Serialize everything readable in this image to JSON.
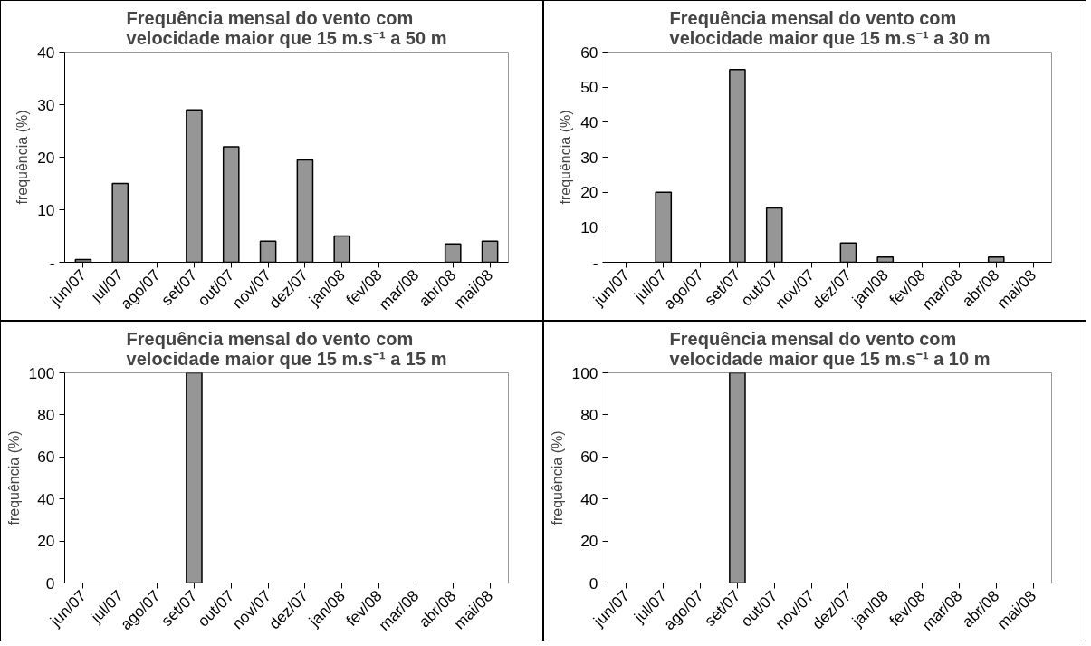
{
  "chart_data": [
    {
      "type": "bar",
      "title": "Frequência mensal do vento com\nvelocidade maior que 15 m.s⁻¹ a 50 m",
      "ylabel": "frequência (%)",
      "categories": [
        "jun/07",
        "jul/07",
        "ago/07",
        "set/07",
        "out/07",
        "nov/07",
        "dez/07",
        "jan/08",
        "fev/08",
        "mar/08",
        "abr/08",
        "mai/08"
      ],
      "values": [
        0.5,
        15,
        0,
        29,
        22,
        4,
        19.5,
        5,
        0,
        0,
        3.5,
        4
      ],
      "color": "#969696",
      "ylim": [
        0,
        40
      ],
      "yticks": [
        {
          "value": 0,
          "label": "-"
        },
        10,
        20,
        30,
        40
      ],
      "grid": false
    },
    {
      "type": "bar",
      "title": "Frequência mensal do vento com\nvelocidade maior que 15 m.s⁻¹ a 30 m",
      "ylabel": "frequência (%)",
      "categories": [
        "jun/07",
        "jul/07",
        "ago/07",
        "set/07",
        "out/07",
        "nov/07",
        "dez/07",
        "jan/08",
        "fev/08",
        "mar/08",
        "abr/08",
        "mai/08"
      ],
      "values": [
        0,
        20,
        0,
        55,
        15.5,
        0,
        5.5,
        1.5,
        0,
        0,
        1.5,
        0
      ],
      "color": "#969696",
      "ylim": [
        0,
        60
      ],
      "yticks": [
        {
          "value": 0,
          "label": "-"
        },
        10,
        20,
        30,
        40,
        50,
        60
      ],
      "grid": false
    },
    {
      "type": "bar",
      "title": "Frequência mensal do vento com\nvelocidade maior que 15 m.s⁻¹ a 15 m",
      "ylabel": "frequência (%)",
      "categories": [
        "jun/07",
        "jul/07",
        "ago/07",
        "set/07",
        "out/07",
        "nov/07",
        "dez/07",
        "jan/08",
        "fev/08",
        "mar/08",
        "abr/08",
        "mai/08"
      ],
      "values": [
        0,
        0,
        0,
        100,
        0,
        0,
        0,
        0,
        0,
        0,
        0,
        0
      ],
      "color": "#969696",
      "ylim": [
        0,
        100
      ],
      "yticks": [
        0,
        20,
        40,
        60,
        80,
        100
      ],
      "grid": false
    },
    {
      "type": "bar",
      "title": "Frequência mensal do vento com\nvelocidade maior que 15 m.s⁻¹ a 10 m",
      "ylabel": "frequência (%)",
      "categories": [
        "jun/07",
        "jul/07",
        "ago/07",
        "set/07",
        "out/07",
        "nov/07",
        "dez/07",
        "jan/08",
        "fev/08",
        "mar/08",
        "abr/08",
        "mai/08"
      ],
      "values": [
        0,
        0,
        0,
        100,
        0,
        0,
        0,
        0,
        0,
        0,
        0,
        0
      ],
      "color": "#969696",
      "ylim": [
        0,
        100
      ],
      "yticks": [
        0,
        20,
        40,
        60,
        80,
        100
      ],
      "grid": false
    }
  ]
}
